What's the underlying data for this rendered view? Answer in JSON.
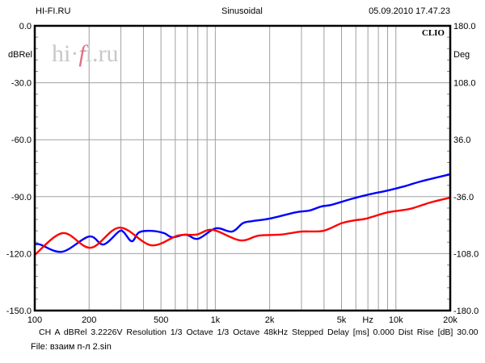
{
  "header": {
    "left": "HI-FI.RU",
    "center": "Sinusoidal",
    "right": "05.09.2010 17.47.23"
  },
  "watermark": {
    "pre": "hi·",
    "f": "f",
    "post": "i.ru"
  },
  "brand": "CLIO",
  "footer": {
    "info": "CH A   dBRel 3.2226V  Resolution 1/3 Octave   1/3 Octave   48kHz   Stepped     Delay [ms] 0.000    Dist Rise [dB] 30.00",
    "file": "File: взаим п-л 2.sin"
  },
  "chart_data": {
    "type": "line",
    "title": "Sinusoidal",
    "xscale": "log",
    "xlim": [
      100,
      20000
    ],
    "ylim": [
      -150,
      0
    ],
    "y2lim": [
      -180,
      180
    ],
    "ylabel": "dBRel",
    "y2label": "Deg",
    "xlabel": "Hz",
    "grid": true,
    "x_tick_labels": [
      {
        "v": 100,
        "t": "100"
      },
      {
        "v": 200,
        "t": "200"
      },
      {
        "v": 500,
        "t": "500"
      },
      {
        "v": 1000,
        "t": "1k"
      },
      {
        "v": 2000,
        "t": "2k"
      },
      {
        "v": 5000,
        "t": "5k"
      },
      {
        "v": 10000,
        "t": "10k"
      },
      {
        "v": 20000,
        "t": "20k"
      }
    ],
    "y_tick_labels": [
      "0.0",
      "-30.0",
      "-60.0",
      "-90.0",
      "-120.0",
      "-150.0"
    ],
    "y2_tick_labels": [
      "180.0",
      "108.0",
      "36.0",
      "-36.0",
      "-108.0",
      "-180.0"
    ],
    "series": [
      {
        "name": "blue",
        "color": "#0000ff",
        "points": [
          [
            100,
            -115.2
          ],
          [
            107,
            -115.2
          ],
          [
            142,
            -119
          ],
          [
            200,
            -111
          ],
          [
            240,
            -115.2
          ],
          [
            292,
            -108.4
          ],
          [
            310,
            -108.6
          ],
          [
            345,
            -113.5
          ],
          [
            378,
            -108.8
          ],
          [
            441,
            -108
          ],
          [
            520,
            -109.2
          ],
          [
            577,
            -111.4
          ],
          [
            687,
            -110
          ],
          [
            801,
            -112.2
          ],
          [
            1005,
            -106.7
          ],
          [
            1236,
            -108.4
          ],
          [
            1420,
            -104
          ],
          [
            1600,
            -102.9
          ],
          [
            1990,
            -101.6
          ],
          [
            2810,
            -98.2
          ],
          [
            3330,
            -97.3
          ],
          [
            3850,
            -95.2
          ],
          [
            4400,
            -94.3
          ],
          [
            5560,
            -91.4
          ],
          [
            7130,
            -88.8
          ],
          [
            9060,
            -86.7
          ],
          [
            11100,
            -84.6
          ],
          [
            13700,
            -82
          ],
          [
            20000,
            -78.2
          ]
        ]
      },
      {
        "name": "red",
        "color": "#ff0000",
        "points": [
          [
            100,
            -120.7
          ],
          [
            143,
            -109.2
          ],
          [
            204,
            -116.9
          ],
          [
            295,
            -106.3
          ],
          [
            441,
            -115.6
          ],
          [
            620,
            -110.5
          ],
          [
            786,
            -110
          ],
          [
            967,
            -107.5
          ],
          [
            1370,
            -113
          ],
          [
            1740,
            -110.5
          ],
          [
            2295,
            -110
          ],
          [
            3000,
            -108.4
          ],
          [
            3960,
            -108
          ],
          [
            5000,
            -104
          ],
          [
            5980,
            -102.4
          ],
          [
            6830,
            -101.6
          ],
          [
            9060,
            -98.2
          ],
          [
            11900,
            -96.5
          ],
          [
            15600,
            -93
          ],
          [
            20000,
            -90.5
          ]
        ]
      }
    ]
  }
}
